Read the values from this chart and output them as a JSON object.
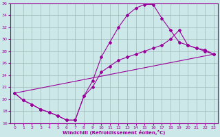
{
  "xlabel": "Windchill (Refroidissement éolien,°C)",
  "background_color": "#cce8e8",
  "grid_color": "#a0b8b8",
  "line_color": "#990099",
  "xlim": [
    -0.5,
    23.5
  ],
  "ylim": [
    16,
    36
  ],
  "xticks": [
    0,
    1,
    2,
    3,
    4,
    5,
    6,
    7,
    8,
    9,
    10,
    11,
    12,
    13,
    14,
    15,
    16,
    17,
    18,
    19,
    20,
    21,
    22,
    23
  ],
  "yticks": [
    16,
    18,
    20,
    22,
    24,
    26,
    28,
    30,
    32,
    34,
    36
  ],
  "line1_x": [
    0,
    1,
    2,
    3,
    4,
    5,
    6,
    7,
    8,
    9,
    10,
    11,
    12,
    13,
    14,
    15,
    16,
    17,
    18,
    19,
    20,
    21,
    22,
    23
  ],
  "line1_y": [
    21.0,
    19.8,
    19.1,
    18.3,
    17.8,
    17.2,
    16.5,
    16.5,
    20.5,
    23.0,
    27.0,
    29.5,
    32.0,
    34.0,
    35.2,
    35.8,
    35.8,
    33.5,
    31.5,
    29.5,
    29.0,
    28.5,
    28.2,
    27.5
  ],
  "line2_x": [
    0,
    1,
    2,
    3,
    4,
    5,
    6,
    7,
    8,
    9,
    10,
    11,
    12,
    13,
    14,
    15,
    16,
    17,
    18,
    19,
    20,
    21,
    22,
    23
  ],
  "line2_y": [
    21.0,
    19.8,
    19.1,
    18.3,
    17.8,
    17.2,
    16.5,
    16.5,
    20.5,
    22.0,
    24.5,
    25.5,
    26.5,
    27.0,
    27.5,
    28.0,
    28.5,
    29.0,
    30.0,
    31.5,
    29.0,
    28.5,
    28.0,
    27.5
  ],
  "line3_x": [
    0,
    23
  ],
  "line3_y": [
    21.0,
    27.5
  ]
}
